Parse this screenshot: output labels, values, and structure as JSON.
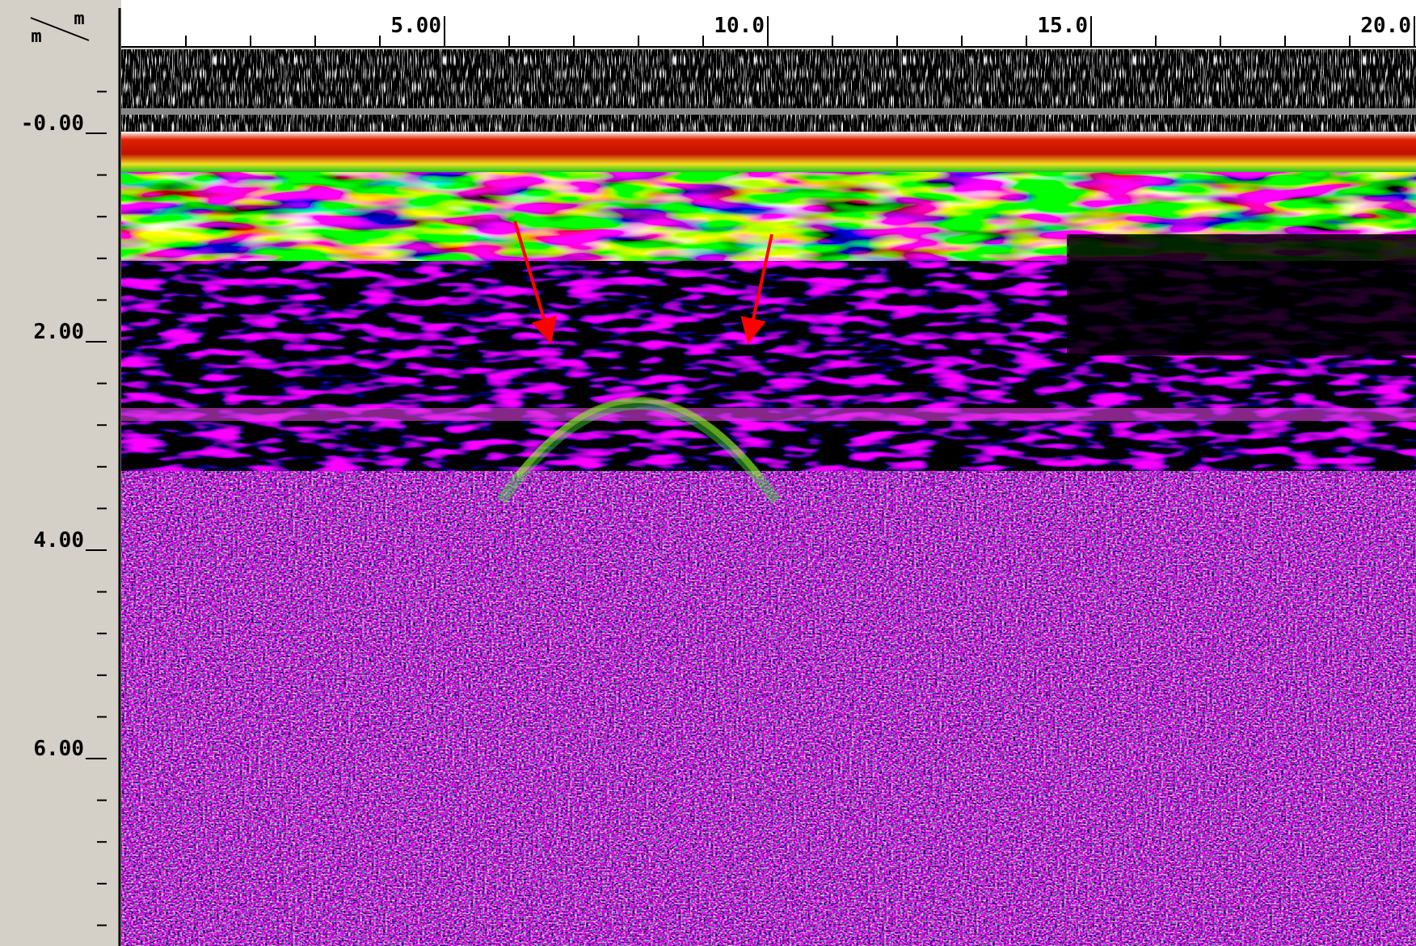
{
  "x_axis": {
    "unit": "m",
    "ticks": [
      {
        "value": 5,
        "label": "5.00"
      },
      {
        "value": 10,
        "label": "10.0"
      },
      {
        "value": 15,
        "label": "15.0"
      },
      {
        "value": 20,
        "label": "20.0"
      }
    ]
  },
  "y_axis": {
    "unit": "m",
    "ticks": [
      {
        "value": 0,
        "label": "-0.00"
      },
      {
        "value": 2,
        "label": "2.00"
      },
      {
        "value": 4,
        "label": "4.00"
      },
      {
        "value": 6,
        "label": "6.00"
      }
    ]
  }
}
